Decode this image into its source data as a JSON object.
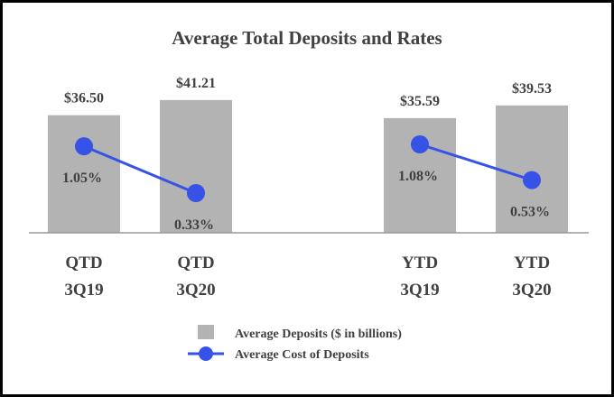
{
  "chart_data": {
    "type": "bar",
    "title": "Average Total Deposits and Rates",
    "categories": [
      [
        "QTD",
        "3Q19"
      ],
      [
        "QTD",
        "3Q20"
      ],
      [
        "YTD",
        "3Q19"
      ],
      [
        "YTD",
        "3Q20"
      ]
    ],
    "series": [
      {
        "name": "Average Deposits ($ in billions)",
        "type": "bar",
        "values": [
          36.5,
          41.21,
          35.59,
          39.53
        ],
        "labels": [
          "$36.50",
          "$41.21",
          "$35.59",
          "$39.53"
        ],
        "color": "#b3b3b3"
      },
      {
        "name": "Average Cost of Deposits",
        "type": "line",
        "values": [
          1.05,
          0.33,
          1.08,
          0.53
        ],
        "labels": [
          "1.05%",
          "0.33%",
          "1.08%",
          "0.53%"
        ],
        "color": "#3752e6",
        "segments": [
          [
            0,
            1
          ],
          [
            2,
            3
          ]
        ]
      }
    ],
    "legend_position": "bottom-center",
    "grid": false
  }
}
